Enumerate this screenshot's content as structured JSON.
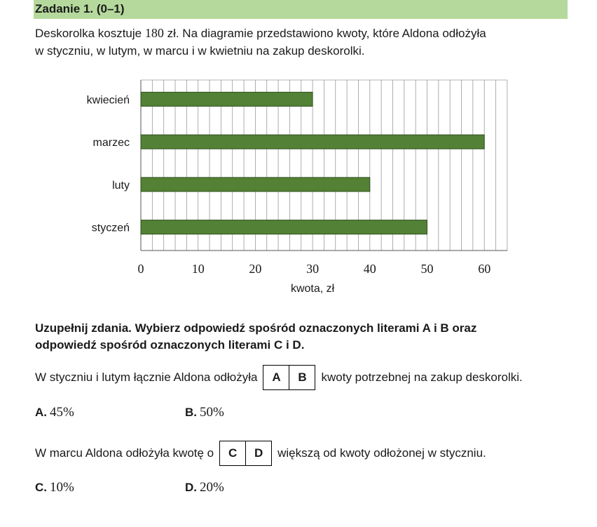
{
  "header": {
    "title": "Zadanie 1. (0–1)"
  },
  "intro": {
    "line1_a": "Deskorolka kosztuje ",
    "price": "180",
    "line1_b": " zł. Na diagramie przedstawiono kwoty, które Aldona odłożyła",
    "line2": "w styczniu, w lutym, w marcu i w kwietniu na zakup deskorolki."
  },
  "chart_data": {
    "type": "bar",
    "orientation": "horizontal",
    "categories": [
      "kwiecień",
      "marzec",
      "luty",
      "styczeń"
    ],
    "values": [
      30,
      60,
      40,
      50
    ],
    "xlabel": "kwota, zł",
    "xlim": [
      0,
      64
    ],
    "xticks": [
      0,
      10,
      20,
      30,
      40,
      50,
      60
    ],
    "grid": true,
    "bar_color": "#538135"
  },
  "instructions": {
    "line1": "Uzupełnij zdania. Wybierz odpowiedź spośród oznaczonych literami A i B oraz",
    "line2": "odpowiedź spośród oznaczonych literami C i D."
  },
  "q1": {
    "before": "W styczniu i lutym łącznie Aldona odłożyła",
    "box": [
      "A",
      "B"
    ],
    "after": "kwoty potrzebnej na zakup deskorolki.",
    "options": [
      {
        "letter": "A.",
        "value": "45%"
      },
      {
        "letter": "B.",
        "value": "50%"
      }
    ]
  },
  "q2": {
    "before": "W marcu Aldona odłożyła kwotę o",
    "box": [
      "C",
      "D"
    ],
    "after": "większą od kwoty odłożonej w styczniu.",
    "options": [
      {
        "letter": "C.",
        "value": "10%"
      },
      {
        "letter": "D.",
        "value": "20%"
      }
    ]
  }
}
